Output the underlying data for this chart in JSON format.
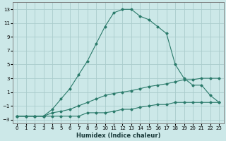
{
  "xlabel": "Humidex (Indice chaleur)",
  "bg_color": "#cce8e8",
  "grid_color": "#aacccc",
  "line_color": "#2a7a6a",
  "xlim": [
    -0.5,
    23.5
  ],
  "ylim": [
    -3.5,
    14.0
  ],
  "xticks": [
    0,
    1,
    2,
    3,
    4,
    5,
    6,
    7,
    8,
    9,
    10,
    11,
    12,
    13,
    14,
    15,
    16,
    17,
    18,
    19,
    20,
    21,
    22,
    23
  ],
  "yticks": [
    -3,
    -1,
    1,
    3,
    5,
    7,
    9,
    11,
    13
  ],
  "line1_x": [
    0,
    1,
    2,
    3,
    4,
    5,
    6,
    7,
    8,
    9,
    10,
    11,
    12,
    13,
    14,
    15,
    16,
    17,
    18,
    19,
    20,
    21,
    22,
    23
  ],
  "line1_y": [
    -2.5,
    -2.5,
    -2.5,
    -2.5,
    -2.5,
    -2.5,
    -2.5,
    -2.5,
    -2.0,
    -2.0,
    -2.0,
    -1.8,
    -1.5,
    -1.5,
    -1.2,
    -1.0,
    -0.8,
    -0.8,
    -0.5,
    -0.5,
    -0.5,
    -0.5,
    -0.5,
    -0.5
  ],
  "line2_x": [
    0,
    1,
    2,
    3,
    4,
    5,
    6,
    7,
    8,
    9,
    10,
    11,
    12,
    13,
    14,
    15,
    16,
    17,
    18,
    19,
    20,
    21,
    22,
    23
  ],
  "line2_y": [
    -2.5,
    -2.5,
    -2.5,
    -2.5,
    -2.0,
    -1.8,
    -1.5,
    -1.0,
    -0.5,
    0.0,
    0.5,
    0.8,
    1.0,
    1.2,
    1.5,
    1.8,
    2.0,
    2.2,
    2.5,
    2.8,
    2.8,
    3.0,
    3.0,
    3.0
  ],
  "line3_x": [
    0,
    1,
    2,
    3,
    4,
    5,
    6,
    7,
    8,
    9,
    10,
    11,
    12,
    13,
    14,
    15,
    16,
    17,
    18,
    19,
    20,
    21,
    22,
    23
  ],
  "line3_y": [
    -2.5,
    -2.5,
    -2.5,
    -2.5,
    -1.5,
    0.0,
    1.5,
    3.5,
    5.5,
    8.0,
    10.5,
    12.5,
    13.0,
    13.0,
    12.0,
    11.5,
    10.5,
    9.5,
    5.0,
    3.0,
    2.0,
    2.0,
    0.5,
    -0.5
  ]
}
